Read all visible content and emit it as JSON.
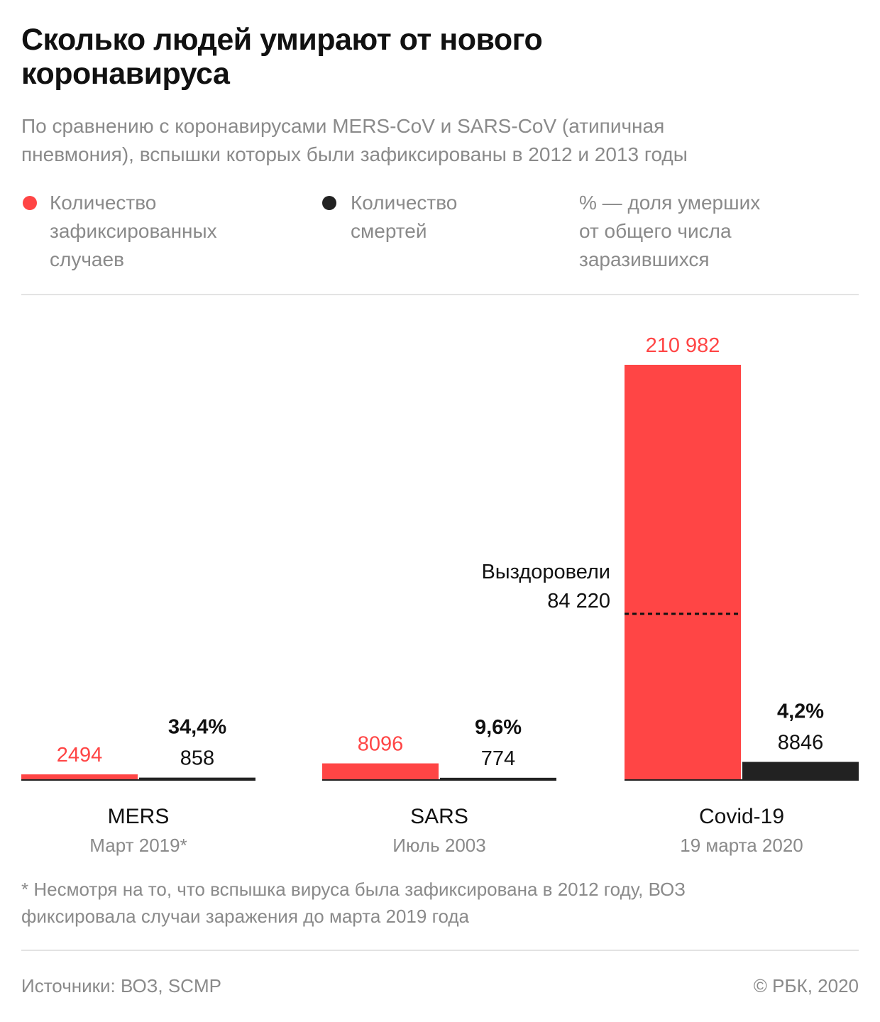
{
  "title": "Сколько людей умирают от нового\nкоронавируса",
  "subtitle": "По сравнению с коронавирусами MERS-CoV и SARS-CoV (атипичная\nпневмония), вспышки которых были зафиксированы в 2012 и 2013 годы",
  "legend": {
    "cases": "Количество\nзафиксированных\nслучаев",
    "deaths": "Количество\nсмертей",
    "percent": "% — доля умерших\nот общего числа\nзаразившихся"
  },
  "colors": {
    "cases": "#ff4545",
    "deaths": "#222222",
    "baseline": "#222222"
  },
  "chart_data": {
    "type": "bar",
    "categories": [
      "MERS",
      "SARS",
      "Covid-19"
    ],
    "category_dates": [
      "Март 2019*",
      "Июль 2003",
      "19 марта 2020"
    ],
    "series": [
      {
        "key": "cases",
        "values": [
          2494,
          8096,
          210982
        ],
        "labels": [
          "2494",
          "8096",
          "210 982"
        ]
      },
      {
        "key": "deaths",
        "values": [
          858,
          774,
          8846
        ],
        "labels": [
          "858",
          "774",
          "8846"
        ]
      }
    ],
    "death_rate_labels": [
      "34,4%",
      "9,6%",
      "4,2%"
    ],
    "annotation": {
      "category": "Covid-19",
      "text": "Выздоровели",
      "value": 84220,
      "value_label": "84 220"
    }
  },
  "footnote": "* Несмотря на то, что вспышка вируса была зафиксирована в 2012 году, ВОЗ\nфиксировала случаи заражения до марта 2019 года",
  "source": "Источники: ВОЗ, SCMP",
  "copyright": "© РБК, 2020"
}
